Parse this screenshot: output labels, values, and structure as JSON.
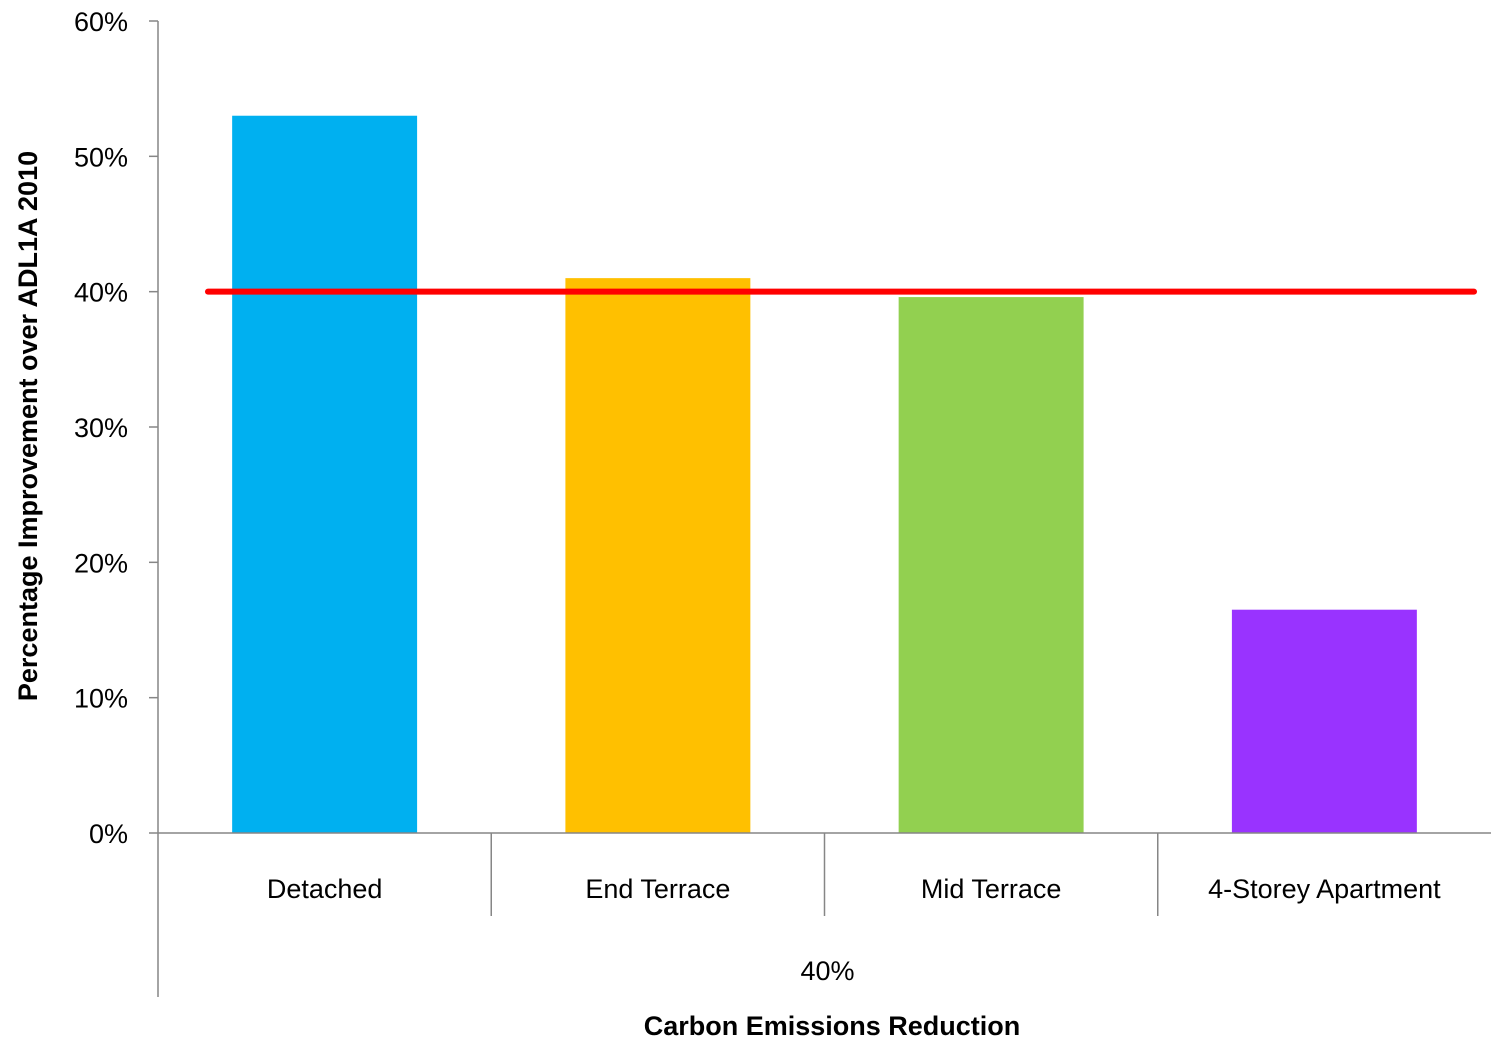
{
  "chart_data": {
    "type": "bar",
    "title": "",
    "xlabel": "Carbon Emissions Reduction",
    "ylabel": "Percentage Improvement over ADL1A 2010",
    "group_label": "40%",
    "categories": [
      "Detached",
      "End Terrace",
      "Mid Terrace",
      "4-Storey Apartment"
    ],
    "values": [
      0.53,
      0.41,
      0.396,
      0.165
    ],
    "colors": [
      "#00B0F0",
      "#FFC000",
      "#92D050",
      "#9933FF"
    ],
    "ylim": [
      0,
      0.6
    ],
    "yticks": [
      0,
      0.1,
      0.2,
      0.3,
      0.4,
      0.5,
      0.6
    ],
    "ytick_labels": [
      "0%",
      "10%",
      "20%",
      "30%",
      "40%",
      "50%",
      "60%"
    ],
    "reference_line": {
      "value": 0.4,
      "color": "#FF0000"
    },
    "grid": false,
    "legend": "none"
  }
}
